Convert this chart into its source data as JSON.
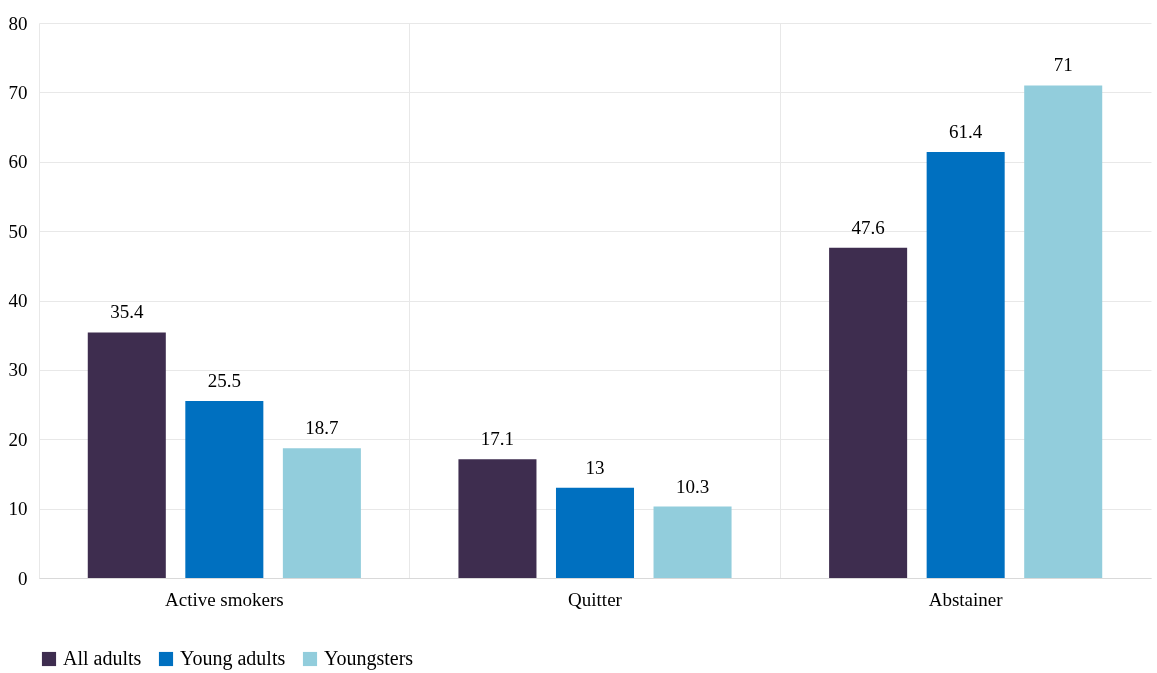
{
  "chart_data": {
    "type": "bar",
    "categories": [
      "Active smokers",
      "Quitter",
      "Abstainer"
    ],
    "series": [
      {
        "name": "All adults",
        "color": "#3e2d4f",
        "values": [
          35.4,
          17.1,
          47.6
        ]
      },
      {
        "name": "Young adults",
        "color": "#0070c0",
        "values": [
          25.5,
          13,
          61.4
        ]
      },
      {
        "name": "Youngsters",
        "color": "#92cddc",
        "values": [
          18.7,
          10.3,
          71
        ]
      }
    ],
    "ylim": [
      0,
      80
    ],
    "yticks": [
      0,
      10,
      20,
      30,
      40,
      50,
      60,
      70,
      80
    ],
    "grid": true,
    "legend": "bottom",
    "data_labels": true
  }
}
